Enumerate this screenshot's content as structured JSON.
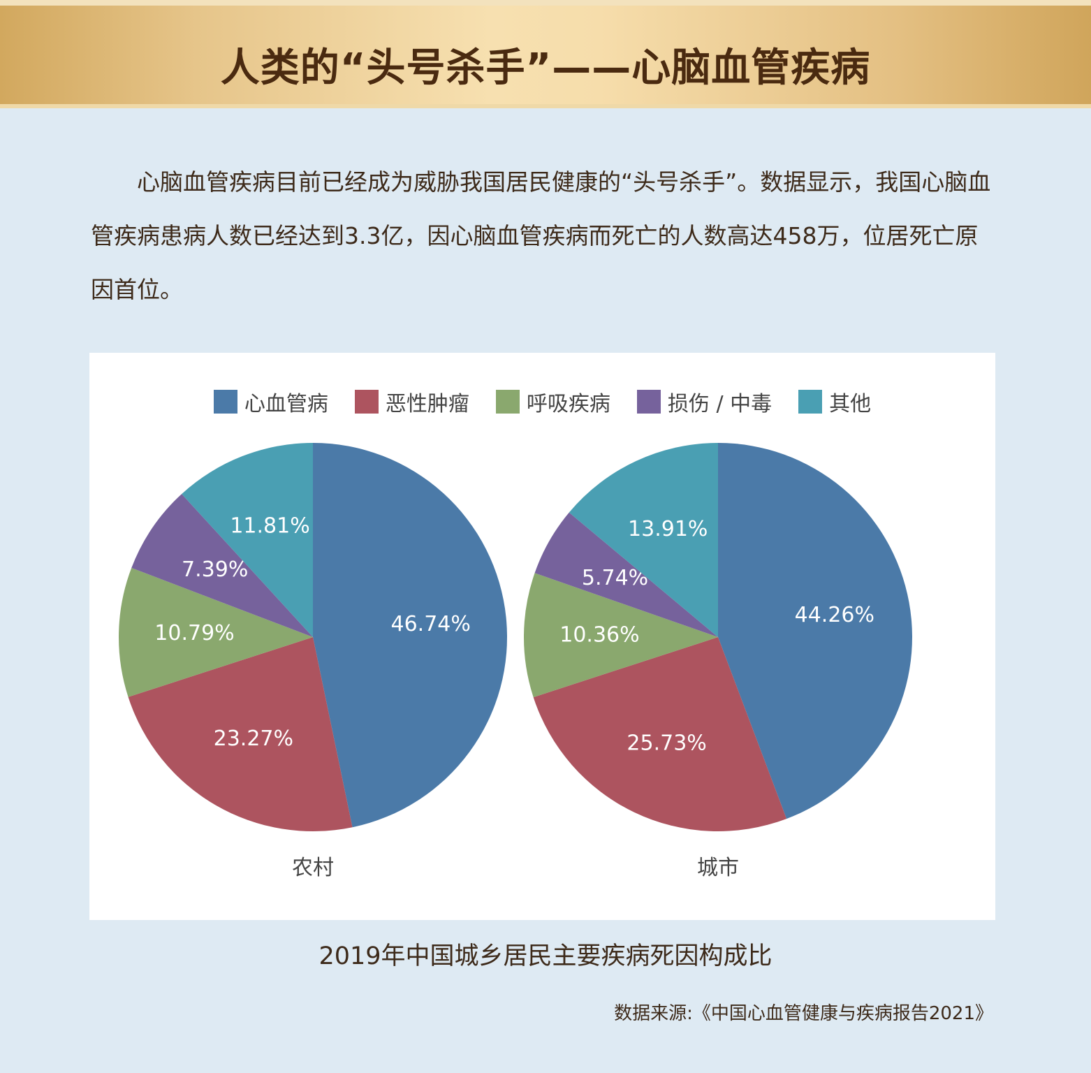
{
  "header": {
    "title": "人类的“头号杀手”——心脑血管疾病"
  },
  "intro": {
    "text": "心脑血管疾病目前已经成为威胁我国居民健康的“头号杀手”。数据显示，我国心脑血管疾病患病人数已经达到3.3亿，因心脑血管疾病而死亡的人数高达458万，位居死亡原因首位。"
  },
  "chart_data": {
    "type": "pie",
    "title": "2019年中国城乡居民主要疾病死因构成比",
    "legend_position": "top",
    "categories": [
      "心血管病",
      "恶性肿瘤",
      "呼吸疾病",
      "损伤 / 中毒",
      "其他"
    ],
    "colors": [
      "#4b7aa8",
      "#ad545f",
      "#8aa86e",
      "#76629c",
      "#4a9fb3"
    ],
    "series": [
      {
        "name": "农村",
        "values": [
          46.74,
          23.27,
          10.79,
          7.39,
          11.81
        ],
        "labels": [
          "46.74%",
          "23.27%",
          "10.79%",
          "7.39%",
          "11.81%"
        ]
      },
      {
        "name": "城市",
        "values": [
          44.26,
          25.73,
          10.36,
          5.74,
          13.91
        ],
        "labels": [
          "44.26%",
          "25.73%",
          "10.36%",
          "5.74%",
          "13.91%"
        ]
      }
    ]
  },
  "source": {
    "text": "数据来源:《中国心血管健康与疾病报告2021》"
  }
}
